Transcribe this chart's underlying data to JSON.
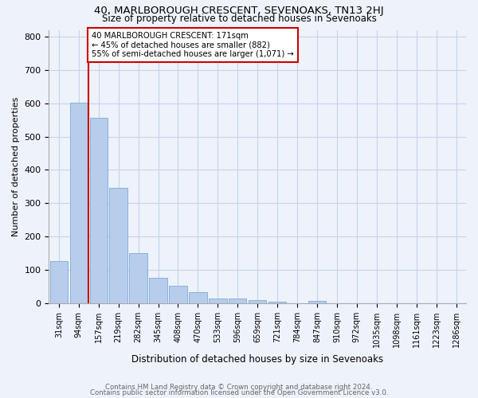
{
  "title1": "40, MARLBOROUGH CRESCENT, SEVENOAKS, TN13 2HJ",
  "title2": "Size of property relative to detached houses in Sevenoaks",
  "xlabel": "Distribution of detached houses by size in Sevenoaks",
  "ylabel": "Number of detached properties",
  "categories": [
    "31sqm",
    "94sqm",
    "157sqm",
    "219sqm",
    "282sqm",
    "345sqm",
    "408sqm",
    "470sqm",
    "533sqm",
    "596sqm",
    "659sqm",
    "721sqm",
    "784sqm",
    "847sqm",
    "910sqm",
    "972sqm",
    "1035sqm",
    "1098sqm",
    "1161sqm",
    "1223sqm",
    "1286sqm"
  ],
  "values": [
    127,
    601,
    556,
    345,
    150,
    77,
    53,
    34,
    15,
    13,
    10,
    5,
    0,
    8,
    0,
    0,
    0,
    0,
    0,
    0,
    0
  ],
  "bar_color": "#b8cceb",
  "bar_edge_color": "#7aacd6",
  "vline_color": "#cc0000",
  "annotation_text": "40 MARLBOROUGH CRESCENT: 171sqm\n← 45% of detached houses are smaller (882)\n55% of semi-detached houses are larger (1,071) →",
  "annotation_box_color": "#ffffff",
  "annotation_box_edge": "#cc0000",
  "ylim": [
    0,
    820
  ],
  "yticks": [
    0,
    100,
    200,
    300,
    400,
    500,
    600,
    700,
    800
  ],
  "footer1": "Contains HM Land Registry data © Crown copyright and database right 2024.",
  "footer2": "Contains public sector information licensed under the Open Government Licence v3.0.",
  "background_color": "#eef2fb",
  "grid_color": "#c5d3ee"
}
